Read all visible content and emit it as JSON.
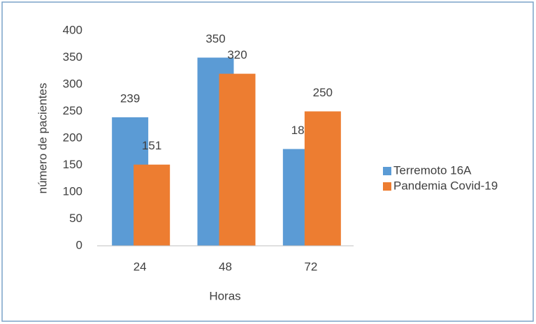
{
  "chart_data": {
    "type": "bar",
    "x_label": "Horas",
    "y_label": "número de pacientes",
    "categories": [
      "24",
      "48",
      "72"
    ],
    "series": [
      {
        "name": "Terremoto 16A",
        "color": "#5b9bd5",
        "values": [
          239,
          350,
          180
        ]
      },
      {
        "name": "Pandemia Covid-19",
        "color": "#ed7d31",
        "values": [
          151,
          320,
          250
        ]
      }
    ],
    "ylim": [
      0,
      400
    ],
    "yticks": [
      0,
      50,
      100,
      150,
      200,
      250,
      300,
      350,
      400
    ],
    "grid": false,
    "legend": "right",
    "data_labels": true
  }
}
